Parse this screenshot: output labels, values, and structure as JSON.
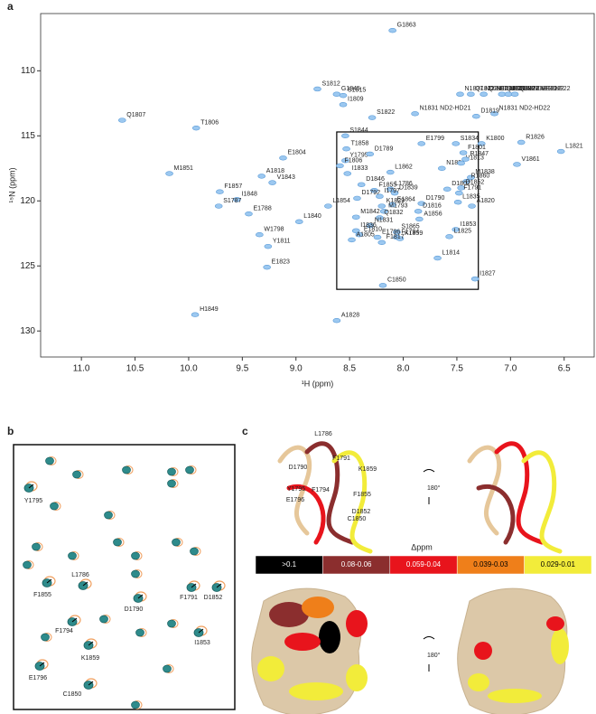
{
  "panel_labels": [
    "a",
    "b",
    "c"
  ],
  "chart_data": [
    {
      "type": "scatter",
      "xlabel": "¹H (ppm)",
      "ylabel": "¹⁵N (ppm)",
      "xlim": [
        11.38,
        6.22
      ],
      "ylim": [
        132.0,
        105.6
      ],
      "xticks": [
        {
          "value": 11,
          "label": "11.0"
        },
        10.5,
        {
          "value": 10,
          "label": "10.0"
        },
        9.5,
        {
          "value": 9,
          "label": "9.0"
        },
        8.5,
        {
          "value": 8,
          "label": "8.0"
        },
        7.5,
        {
          "value": 7,
          "label": "7.0"
        },
        6.5
      ],
      "yticks": [
        110,
        115,
        120,
        125,
        130
      ],
      "color": "#9cc8f0",
      "zoom_region": {
        "x": [
          8.62,
          7.3
        ],
        "y": [
          114.7,
          126.8
        ]
      },
      "labels": [
        "G1863",
        "Q1807",
        "T1806",
        "S1812",
        "G1845",
        "S1815",
        "I1809",
        "S1822",
        "N1837 ND2-HD21",
        "Q1832 NE2-HE21",
        "Q1807 NE2-HE21",
        "Q1832 NE2-HE22",
        "N1837 ND2-HD22",
        "Q1807 NE2-HE22",
        "N1831 ND2-HD21",
        "N1831 ND2-HD22",
        "D1819",
        "S1844",
        "E1799",
        "S1834",
        "K1800",
        "R1826",
        "L1821",
        "T1858",
        "E1804",
        "Y1795",
        "F1806",
        "D1789",
        "F1801",
        "N1837",
        "V1813",
        "R1847",
        "M1851",
        "A1818",
        "V1843",
        "I1833",
        "L1862",
        "V1861",
        "M1838",
        "R1860",
        "D1852",
        "F1857",
        "D1846",
        "F1855",
        "L1786",
        "D1839",
        "D1802",
        "F1791",
        "I1848",
        "D1792",
        "I1797",
        "L1835",
        "D1790",
        "A1820",
        "S1787",
        "K1829",
        "E1864",
        "M1793",
        "D1816",
        "L1854",
        "E1788",
        "A1856",
        "Q1832",
        "M1842",
        "L1840",
        "N1831",
        "I1836",
        "E1810",
        "A1805",
        "W1798",
        "I1853",
        "S1865",
        "F1794",
        "L1825",
        "E1796",
        "K1859",
        "F1817",
        "Y1811",
        "L1814",
        "E1823",
        "C1850",
        "I1827",
        "H1849",
        "A1828"
      ],
      "x": [
        8.1,
        10.62,
        9.93,
        8.8,
        8.62,
        8.56,
        8.56,
        8.29,
        7.47,
        7.37,
        7.25,
        7.08,
        7.02,
        6.96,
        7.89,
        7.15,
        7.32,
        8.54,
        7.83,
        7.51,
        7.27,
        6.9,
        6.53,
        8.53,
        9.12,
        8.54,
        8.59,
        8.31,
        7.44,
        7.64,
        7.46,
        7.42,
        10.18,
        9.32,
        9.22,
        8.52,
        8.12,
        6.94,
        7.37,
        7.41,
        7.46,
        9.71,
        8.39,
        8.27,
        8.12,
        8.08,
        7.59,
        7.48,
        9.55,
        8.43,
        8.22,
        7.49,
        7.83,
        7.36,
        9.72,
        8.2,
        8.1,
        8.18,
        7.86,
        8.7,
        9.44,
        7.85,
        8.22,
        8.44,
        8.97,
        8.31,
        8.44,
        8.41,
        8.48,
        9.34,
        7.51,
        8.06,
        8.06,
        7.57,
        8.24,
        8.03,
        8.2,
        9.26,
        7.68,
        9.27,
        8.19,
        7.33,
        9.94,
        8.62
      ],
      "values": [
        106.9,
        113.8,
        114.4,
        111.4,
        111.8,
        111.9,
        112.6,
        113.6,
        111.8,
        111.8,
        111.8,
        111.8,
        111.8,
        111.8,
        113.3,
        113.3,
        113.5,
        115.0,
        115.6,
        115.6,
        115.6,
        115.5,
        116.2,
        116.0,
        116.7,
        116.9,
        117.3,
        116.4,
        116.3,
        117.5,
        117.1,
        116.8,
        117.9,
        118.1,
        118.6,
        117.9,
        117.8,
        117.2,
        118.2,
        118.5,
        119.0,
        119.3,
        118.75,
        119.2,
        119.1,
        119.4,
        119.1,
        119.4,
        119.9,
        119.8,
        119.65,
        120.1,
        120.2,
        120.4,
        120.4,
        120.4,
        120.3,
        120.8,
        120.8,
        120.4,
        121.0,
        121.4,
        121.3,
        121.25,
        121.6,
        121.9,
        122.3,
        122.6,
        123.0,
        122.6,
        122.2,
        122.4,
        122.8,
        122.75,
        122.8,
        122.9,
        123.2,
        123.5,
        124.4,
        125.1,
        126.5,
        126.0,
        128.75,
        129.2
      ]
    }
  ],
  "panel_b": {
    "labels": [
      "Y1795",
      "L1786",
      "F1791",
      "D1852",
      "F1855",
      "D1790",
      "F1794",
      "I1853",
      "E1796",
      "K1859",
      "C1850"
    ]
  },
  "panel_c": {
    "structure_labels": [
      "L1786",
      "F1791",
      "D1790",
      "K1859",
      "Y1795",
      "F1794",
      "F1855",
      "E1796",
      "D1852",
      "C1850"
    ],
    "rotation": [
      "180°",
      "180°"
    ],
    "legend_title": "Δppm",
    "legend": [
      {
        "label": ">0.1",
        "color": "#000000"
      },
      {
        "label": "0.08-0.06",
        "color": "#8b2e2e"
      },
      {
        "label": "0.059-0.04",
        "color": "#e8141c"
      },
      {
        "label": "0.039-0.03",
        "color": "#ef7f1a"
      },
      {
        "label": "0.029-0.01",
        "color": "#f2ec3a"
      }
    ]
  }
}
